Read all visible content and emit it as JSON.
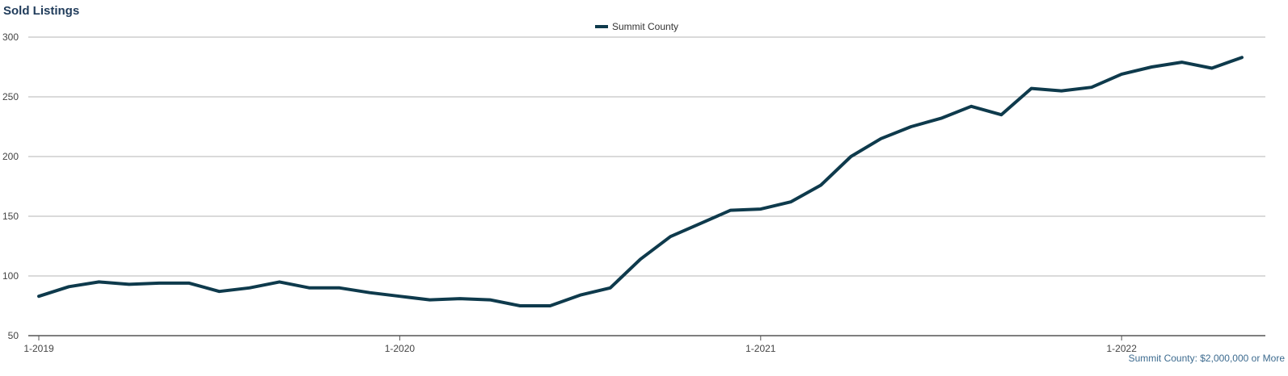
{
  "chart_data": {
    "type": "line",
    "title": "Sold Listings",
    "footnote": "Summit County: $2,000,000 or More",
    "xlabel": "",
    "ylabel": "",
    "ylim": [
      50,
      300
    ],
    "yticks": [
      50,
      100,
      150,
      200,
      250,
      300
    ],
    "x_tick_labels": [
      "1-2019",
      "1-2020",
      "1-2021",
      "1-2022"
    ],
    "grid": true,
    "legend_position": "top-center",
    "x": [
      "1-2019",
      "2-2019",
      "3-2019",
      "4-2019",
      "5-2019",
      "6-2019",
      "7-2019",
      "8-2019",
      "9-2019",
      "10-2019",
      "11-2019",
      "12-2019",
      "1-2020",
      "2-2020",
      "3-2020",
      "4-2020",
      "5-2020",
      "6-2020",
      "7-2020",
      "8-2020",
      "9-2020",
      "10-2020",
      "11-2020",
      "12-2020",
      "1-2021",
      "2-2021",
      "3-2021",
      "4-2021",
      "5-2021",
      "6-2021",
      "7-2021",
      "8-2021",
      "9-2021",
      "10-2021",
      "11-2021",
      "12-2021",
      "1-2022",
      "2-2022",
      "3-2022",
      "4-2022",
      "5-2022"
    ],
    "series": [
      {
        "name": "Summit County",
        "color": "#0e3a4c",
        "values": [
          83,
          91,
          95,
          93,
          94,
          94,
          87,
          90,
          95,
          90,
          90,
          86,
          83,
          80,
          81,
          80,
          75,
          75,
          84,
          90,
          114,
          133,
          144,
          155,
          156,
          162,
          176,
          200,
          215,
          225,
          232,
          242,
          235,
          257,
          255,
          258,
          269,
          275,
          279,
          274,
          283
        ]
      }
    ]
  }
}
